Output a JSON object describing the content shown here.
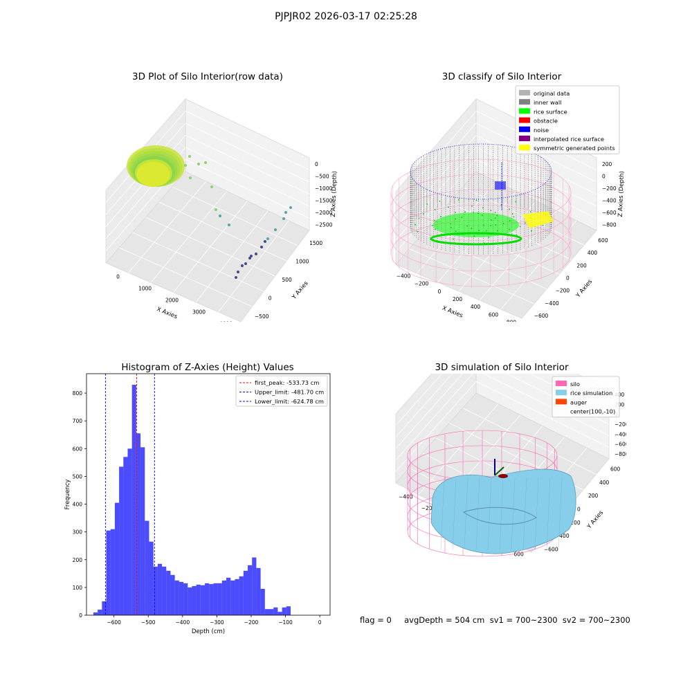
{
  "suptitle": "PJPJR02 2026-03-17 02:25:28",
  "footer": "flag = 0     avgDepth = 504 cm  sv1 = 700~2300  sv2 = 700~2300",
  "chart_data": [
    {
      "type": "scatter3d",
      "title": "3D Plot of Silo Interior(row data)",
      "xlabel": "X Axies",
      "ylabel": "Y Axies",
      "zlabel": "Z Axies (Depth)",
      "x_ticks": [
        "0",
        "1000",
        "2000",
        "3000",
        "4000"
      ],
      "y_ticks": [
        "−500",
        "0",
        "500",
        "1000",
        "1500"
      ],
      "z_ticks": [
        "0",
        "−500",
        "−1000",
        "−1500",
        "−2000",
        "−2500"
      ],
      "colors": {
        "surface": "#b8e23a",
        "points_far": "#3b3f8c",
        "points_near": "#8fd06a"
      }
    },
    {
      "type": "scatter3d",
      "title": "3D classify of Silo Interior",
      "xlabel": "X Axies",
      "ylabel": "Y Axies",
      "zlabel": "Z Axies (Depth)",
      "x_ticks": [
        "−400",
        "−200",
        "0",
        "200",
        "400",
        "600",
        "800"
      ],
      "y_ticks": [
        "−600",
        "−400",
        "−200",
        "0",
        "200",
        "400",
        "600"
      ],
      "z_ticks": [
        "200",
        "0",
        "−200",
        "−400",
        "−600",
        "−800"
      ],
      "legend": [
        {
          "label": "original data",
          "color": "#b3b3b3"
        },
        {
          "label": "inner wall",
          "color": "#808080"
        },
        {
          "label": "rice surface",
          "color": "#00ff00"
        },
        {
          "label": "obstacle",
          "color": "#ff0000"
        },
        {
          "label": "noise",
          "color": "#0000ff"
        },
        {
          "label": "interpolated rice surface",
          "color": "#800080"
        },
        {
          "label": "symmetric generated points",
          "color": "#ffff00"
        }
      ]
    },
    {
      "type": "bar",
      "title": "Histogram of Z-Axies (Height) Values",
      "xlabel": "Depth (cm)",
      "ylabel": "Frequency",
      "xlim": [
        -680,
        30
      ],
      "ylim": [
        0,
        870
      ],
      "x_ticks": [
        -600,
        -500,
        -400,
        -300,
        -200,
        -100,
        0
      ],
      "y_ticks": [
        0,
        100,
        200,
        300,
        400,
        500,
        600,
        700,
        800
      ],
      "bin_start": -660,
      "bin_width": 12.5,
      "values": [
        10,
        20,
        50,
        305,
        310,
        405,
        535,
        570,
        600,
        830,
        655,
        605,
        340,
        265,
        175,
        185,
        175,
        160,
        145,
        125,
        120,
        115,
        100,
        105,
        110,
        108,
        115,
        112,
        115,
        115,
        125,
        135,
        125,
        130,
        140,
        160,
        180,
        208,
        170,
        95,
        22,
        22,
        28,
        12,
        28,
        32
      ],
      "bar_color": "#0000ff",
      "lines": [
        {
          "label": "first_peak: -533.73 cm",
          "x": -533.73,
          "color": "#ff0000"
        },
        {
          "label": "Upper_limit: -481.70 cm",
          "x": -481.7,
          "color": "#0000ff"
        },
        {
          "label": "Lower_limit: -624.78 cm",
          "x": -624.78,
          "color": "#0000ff"
        }
      ]
    },
    {
      "type": "surface3d",
      "title": "3D simulation of Silo Interior",
      "xlabel": "X Axies",
      "ylabel": "Y Axies",
      "zlabel": "Z Axies (Depth)",
      "x_ticks": [
        "−400",
        "−200",
        "0",
        "200",
        "400",
        "600"
      ],
      "y_ticks": [
        "−600",
        "−400",
        "−200",
        "0",
        "200",
        "400",
        "600"
      ],
      "z_ticks": [
        "400",
        "200",
        "0",
        "−200",
        "−400",
        "−600",
        "−800"
      ],
      "legend": [
        {
          "label": "silo",
          "color": "#ff69b4"
        },
        {
          "label": "rice simulation",
          "color": "#87ceeb"
        },
        {
          "label": "auger",
          "color": "#ff4500"
        },
        {
          "label": "center(100,-10)",
          "color": "none"
        }
      ]
    }
  ]
}
